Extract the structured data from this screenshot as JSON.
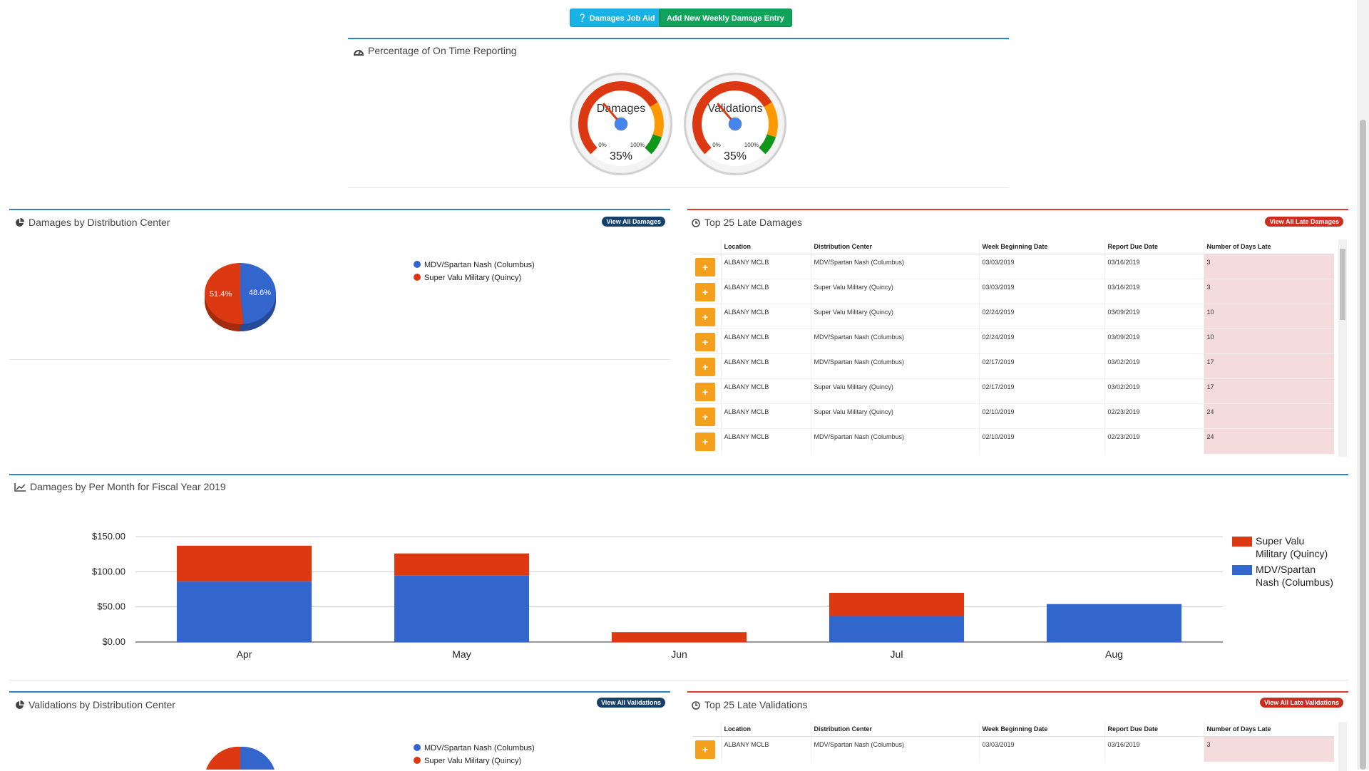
{
  "toolbar": {
    "job_aid_label": "Damages Job Aid",
    "add_entry_label": "Add New Weekly Damage Entry"
  },
  "on_time": {
    "title": "Percentage of On Time Reporting",
    "gauges": [
      {
        "label": "Damages",
        "value": 35,
        "value_text": "35%",
        "min_text": "0%",
        "max_text": "100%"
      },
      {
        "label": "Validations",
        "value": 35,
        "value_text": "35%",
        "min_text": "0%",
        "max_text": "100%"
      }
    ]
  },
  "damages_dc": {
    "title": "Damages by Distribution Center",
    "view_all_label": "View All Damages",
    "slices": [
      {
        "name": "MDV/Spartan Nash (Columbus)",
        "value": 48.6,
        "label": "48.6%",
        "color": "#3366cc"
      },
      {
        "name": "Super Valu Military (Quincy)",
        "value": 51.4,
        "label": "51.4%",
        "color": "#dc3912"
      }
    ]
  },
  "late_damages": {
    "title": "Top 25 Late Damages",
    "view_all_label": "View All Late Damages",
    "columns": [
      "Location",
      "Distribution Center",
      "Week Beginning Date",
      "Report Due Date",
      "Number of Days Late"
    ],
    "rows": [
      [
        "ALBANY MCLB",
        "MDV/Spartan Nash (Columbus)",
        "03/03/2019",
        "03/16/2019",
        "3"
      ],
      [
        "ALBANY MCLB",
        "Super Valu Military (Quincy)",
        "03/03/2019",
        "03/16/2019",
        "3"
      ],
      [
        "ALBANY MCLB",
        "Super Valu Military (Quincy)",
        "02/24/2019",
        "03/09/2019",
        "10"
      ],
      [
        "ALBANY MCLB",
        "MDV/Spartan Nash (Columbus)",
        "02/24/2019",
        "03/09/2019",
        "10"
      ],
      [
        "ALBANY MCLB",
        "MDV/Spartan Nash (Columbus)",
        "02/17/2019",
        "03/02/2019",
        "17"
      ],
      [
        "ALBANY MCLB",
        "Super Valu Military (Quincy)",
        "02/17/2019",
        "03/02/2019",
        "17"
      ],
      [
        "ALBANY MCLB",
        "Super Valu Military (Quincy)",
        "02/10/2019",
        "02/23/2019",
        "24"
      ],
      [
        "ALBANY MCLB",
        "MDV/Spartan Nash (Columbus)",
        "02/10/2019",
        "02/23/2019",
        "24"
      ]
    ]
  },
  "monthly": {
    "title": "Damages by Per Month for Fiscal Year 2019"
  },
  "chart_data": {
    "type": "bar",
    "stacked": true,
    "categories": [
      "Apr",
      "May",
      "Jun",
      "Jul",
      "Aug"
    ],
    "series": [
      {
        "name": "MDV/Spartan Nash (Columbus)",
        "legend_lines": [
          "MDV/Spartan",
          "Nash (Columbus)"
        ],
        "color": "#3366cc",
        "values": [
          86,
          95,
          0,
          37,
          54
        ]
      },
      {
        "name": "Super Valu Military (Quincy)",
        "legend_lines": [
          "Super Valu",
          "Military (Quincy)"
        ],
        "color": "#dc3912",
        "values": [
          51,
          31,
          14,
          33,
          0
        ]
      }
    ],
    "yticks": [
      "$0.00",
      "$50.00",
      "$100.00",
      "$150.00"
    ],
    "ytick_values": [
      0,
      50,
      100,
      150
    ],
    "ylim": [
      0,
      150
    ],
    "legend_position": "right",
    "grid": true
  },
  "validations_dc": {
    "title": "Validations by Distribution Center",
    "view_all_label": "View All Validations",
    "slices": [
      {
        "name": "MDV/Spartan Nash (Columbus)",
        "color": "#3366cc"
      },
      {
        "name": "Super Valu Military (Quincy)",
        "color": "#dc3912"
      }
    ]
  },
  "late_validations": {
    "title": "Top 25 Late Validations",
    "view_all_label": "View All Late Validations",
    "columns": [
      "Location",
      "Distribution Center",
      "Week Beginning Date",
      "Report Due Date",
      "Number of Days Late"
    ],
    "rows": [
      [
        "ALBANY MCLB",
        "MDV/Spartan Nash (Columbus)",
        "03/03/2019",
        "03/16/2019",
        "3"
      ]
    ]
  }
}
